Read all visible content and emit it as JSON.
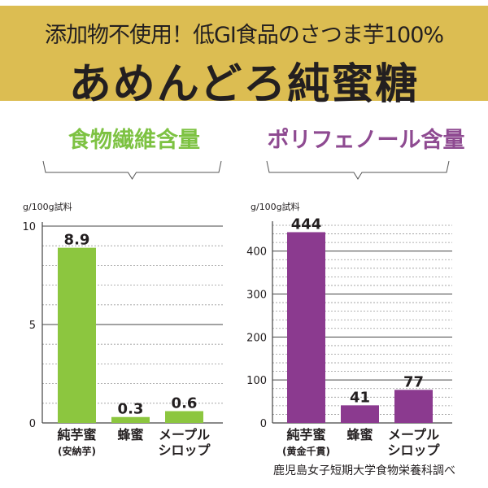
{
  "header": {
    "subtitle": "添加物不使用！低GI食品のさつま芋100%",
    "title": "あめんどろ純蜜糖"
  },
  "source": "鹿児島女子短期大学食物栄養科調べ",
  "chart_data": [
    {
      "type": "bar",
      "title": "食物繊維含量",
      "ylabel": "g/100g試料",
      "categories": [
        [
          "純芋蜜",
          "(安納芋)"
        ],
        [
          "蜂蜜"
        ],
        [
          "メープル",
          "シロップ"
        ]
      ],
      "values": [
        8.9,
        0.3,
        0.6
      ],
      "value_labels": [
        "8.9",
        "0.3",
        "0.6"
      ],
      "ylim": [
        0,
        10
      ],
      "yticks": [
        0,
        5,
        10
      ],
      "grid": true,
      "color": "#8cc63f",
      "title_color": "#7dc242"
    },
    {
      "type": "bar",
      "title": "ポリフェノール含量",
      "ylabel": "g/100g試料",
      "categories": [
        [
          "純芋蜜",
          "(黄金千貫)"
        ],
        [
          "蜂蜜"
        ],
        [
          "メープル",
          "シロップ"
        ]
      ],
      "values": [
        444,
        41,
        77
      ],
      "value_labels": [
        "444",
        "41",
        "77"
      ],
      "ylim": [
        0,
        460
      ],
      "yticks": [
        0,
        100,
        200,
        300,
        400
      ],
      "grid": true,
      "color": "#8b3a8f",
      "title_color": "#8e4a91"
    }
  ]
}
